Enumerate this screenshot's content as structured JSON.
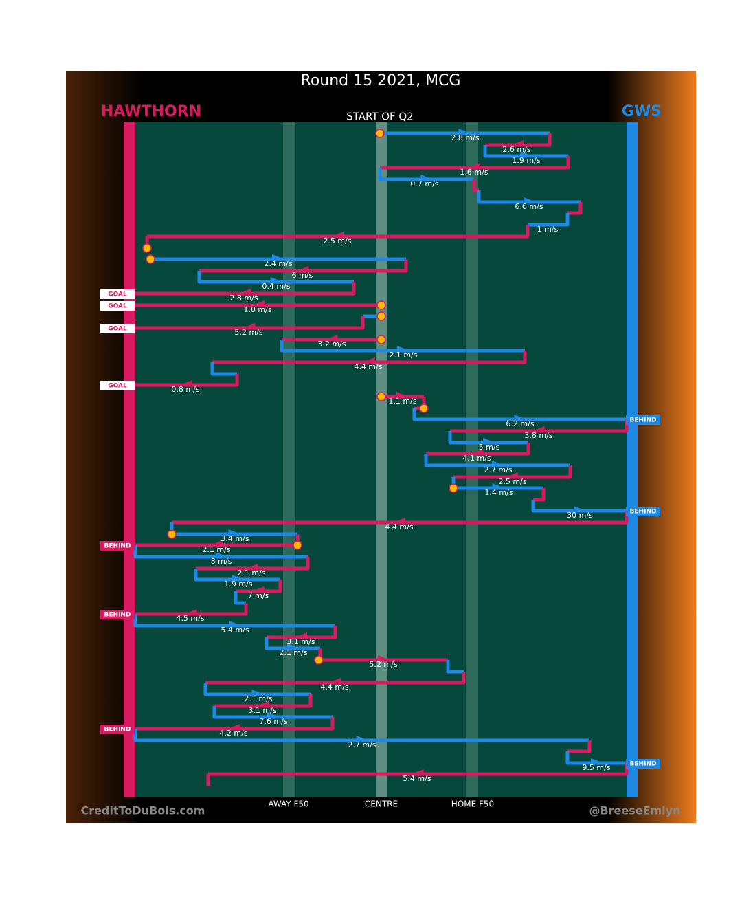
{
  "title": "Round 15 2021, MCG",
  "home_team": "HAWTHORN",
  "away_team": "GWS",
  "start_label": "START OF Q2",
  "speeds": [
    "2.8 m/s",
    "2.6 m/s",
    "1.9 m/s",
    "1.6 m/s",
    "0.7 m/s",
    "6.6 m/s",
    "1 m/s",
    "2.5 m/s",
    "2.4 m/s",
    "6 m/s",
    "0.4 m/s",
    "2.8 m/s",
    "1.8 m/s",
    "5.2 m/s",
    "3.2 m/s",
    "2.1 m/s",
    "4.4 m/s",
    "0.8 m/s",
    "1.1 m/s",
    "6.2 m/s",
    "3.8 m/s",
    "5 m/s",
    "4.1 m/s",
    "2.7 m/s",
    "2.5 m/s",
    "1.4 m/s",
    "30 m/s",
    "4.4 m/s",
    "3.4 m/s",
    "2.1 m/s",
    "8 m/s",
    "2.1 m/s",
    "1.9 m/s",
    "7 m/s",
    "4.5 m/s",
    "5.4 m/s",
    "3.1 m/s",
    "2.1 m/s",
    "5.2 m/s",
    "4.4 m/s",
    "2.1 m/s",
    "3.1 m/s",
    "7.6 m/s",
    "4.2 m/s",
    "2.7 m/s",
    "9.5 m/s",
    "5.4 m/s"
  ],
  "scores": [
    "GOAL",
    "GOAL",
    "GOAL",
    "GOAL",
    "BEHIND",
    "BEHIND",
    "BEHIND",
    "BEHIND",
    "BEHIND",
    "BEHIND"
  ],
  "zones": [
    "AWAY F50",
    "CENTRE",
    "HOME F50"
  ],
  "credits": [
    "CreditToDuBois.com",
    "@BreeseEmlyn"
  ]
}
